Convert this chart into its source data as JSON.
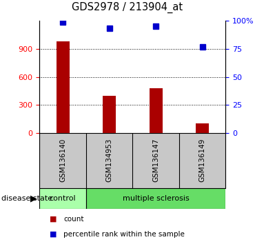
{
  "title": "GDS2978 / 213904_at",
  "samples": [
    "GSM136140",
    "GSM134953",
    "GSM136147",
    "GSM136149"
  ],
  "counts": [
    980,
    400,
    480,
    105
  ],
  "percentiles": [
    99,
    93,
    95,
    77
  ],
  "bar_color": "#AA0000",
  "square_color": "#0000CC",
  "left_ylim": [
    0,
    1200
  ],
  "left_yticks": [
    0,
    300,
    600,
    900
  ],
  "right_ylim": [
    0,
    100
  ],
  "right_yticks": [
    0,
    25,
    50,
    75,
    100
  ],
  "right_yticklabels": [
    "0",
    "25",
    "50",
    "75",
    "100%"
  ],
  "control_color": "#AAFFAA",
  "ms_color": "#66DD66",
  "label_count": "count",
  "label_percentile": "percentile rank within the sample",
  "disease_label": "disease state",
  "tick_label_area_bg": "#C8C8C8",
  "fig_bg": "#FFFFFF"
}
